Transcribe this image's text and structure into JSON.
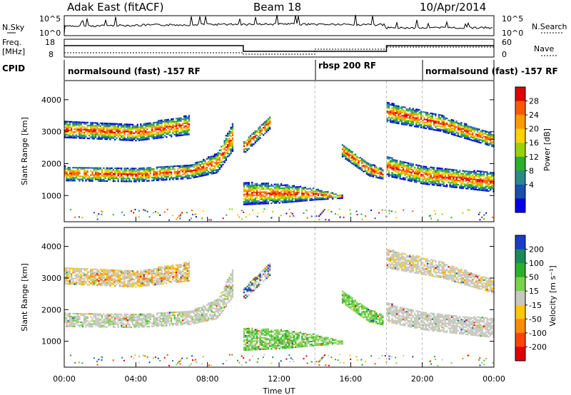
{
  "header": {
    "station": "Adak East (fitACF)",
    "beam": "Beam 18",
    "date": "10/Apr/2014"
  },
  "panels": {
    "noise": {
      "left_label": "N.Sky",
      "left_ticks": [
        "10^5",
        "10^0"
      ],
      "right_label": "N.Search",
      "right_ticks": [
        "10^5",
        "10^0"
      ]
    },
    "freq": {
      "left_label_1": "Freq.",
      "left_label_2": "[MHz]",
      "left_ticks": [
        "18",
        "8"
      ],
      "right_label": "Nave",
      "right_ticks": [
        "60",
        "0"
      ]
    },
    "cpid": {
      "label": "CPID",
      "segments": [
        {
          "text": "normalsound (fast) -157 RF",
          "start_hour": 0,
          "end_hour": 14
        },
        {
          "text": "rbsp 200 RF",
          "start_hour": 14,
          "end_hour": 20
        },
        {
          "text": "normalsound (fast) -157 RF",
          "start_hour": 20,
          "end_hour": 24
        }
      ]
    }
  },
  "colorbars": {
    "power": {
      "label": "Power [dB]",
      "ticks": [
        "28",
        "24",
        "20",
        "16",
        "12",
        "8",
        "4"
      ],
      "colors": [
        "#e00000",
        "#ff5a00",
        "#ff9a00",
        "#ffd200",
        "#9ad200",
        "#2ab02a",
        "#2a8a8a",
        "#1a4fb0",
        "#0000e6"
      ]
    },
    "velocity": {
      "label": "Velocity [m s⁻¹]",
      "ticks": [
        "200",
        "100",
        "50",
        "15",
        "-15",
        "-50",
        "-100",
        "-200"
      ],
      "colors": [
        "#1a3cc8",
        "#1a8a5a",
        "#2ab02a",
        "#7ad24a",
        "#c8c8c0",
        "#ffc800",
        "#ff8c00",
        "#ff4400",
        "#e00000"
      ]
    }
  },
  "chart_data": {
    "type": "heatmap",
    "xlabel": "Time UT",
    "ylabel": "Slant Range [km]",
    "x_ticks": [
      "00:00",
      "04:00",
      "08:00",
      "12:00",
      "16:00",
      "20:00",
      "00:00"
    ],
    "xlim_hours": [
      0,
      24
    ],
    "y_ticks": [
      "1000",
      "2000",
      "3000",
      "4000"
    ],
    "ylim_km": [
      180,
      4600
    ],
    "mode_change_hours": [
      14,
      18,
      20
    ],
    "freq_trace": [
      {
        "start_hour": 0,
        "end_hour": 10,
        "value": "high"
      },
      {
        "start_hour": 10,
        "end_hour": 18,
        "value": "low"
      },
      {
        "start_hour": 18,
        "end_hour": 24,
        "value": "high"
      }
    ],
    "echo_regions": [
      {
        "name": "near",
        "points": [
          [
            0,
            1450,
            1900
          ],
          [
            4,
            1420,
            1850
          ],
          [
            7,
            1520,
            1950
          ],
          [
            8.5,
            1700,
            2300
          ],
          [
            9.4,
            2400,
            3300
          ]
        ]
      },
      {
        "name": "upper",
        "points": [
          [
            0,
            2800,
            3300
          ],
          [
            4,
            2700,
            3200
          ],
          [
            7,
            2900,
            3500
          ]
        ]
      },
      {
        "name": "midnight",
        "points": [
          [
            10,
            700,
            1400
          ],
          [
            12,
            750,
            1350
          ],
          [
            14,
            850,
            1200
          ],
          [
            15.5,
            900,
            1000
          ]
        ]
      },
      {
        "name": "rise",
        "points": [
          [
            10,
            2300,
            2700
          ],
          [
            11.5,
            3100,
            3500
          ]
        ]
      },
      {
        "name": "morning",
        "points": [
          [
            18,
            1600,
            2200
          ],
          [
            20,
            1350,
            1900
          ],
          [
            24,
            1100,
            1700
          ]
        ]
      },
      {
        "name": "morning-upper",
        "points": [
          [
            18,
            3300,
            3900
          ],
          [
            21,
            3000,
            3500
          ],
          [
            24,
            2500,
            2900
          ]
        ]
      },
      {
        "name": "dawn-arc",
        "points": [
          [
            15.5,
            2200,
            2600
          ],
          [
            17,
            1600,
            2000
          ],
          [
            17.8,
            1500,
            1800
          ]
        ]
      }
    ]
  }
}
